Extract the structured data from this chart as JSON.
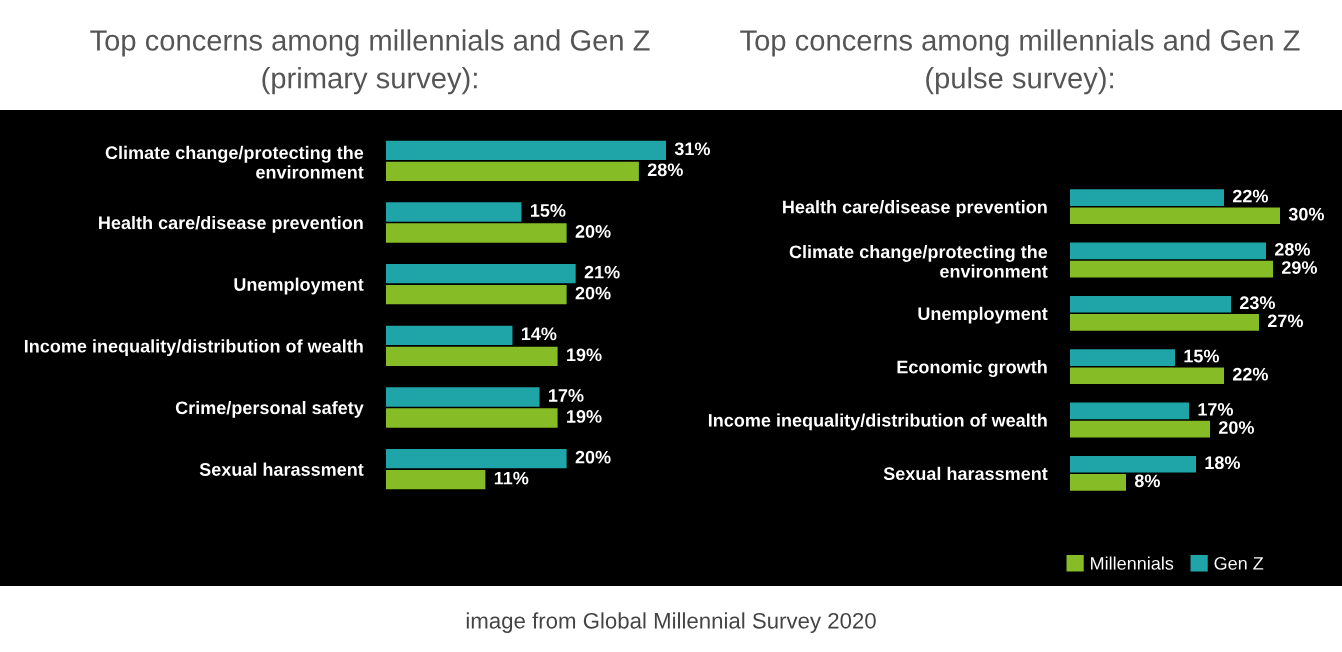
{
  "chart_data": [
    {
      "type": "bar",
      "orientation": "horizontal",
      "title": "Top concerns among millennials and Gen Z\n(primary survey):",
      "categories": [
        "Climate change/protecting the\nenvironment",
        "Health care/disease prevention",
        "Unemployment",
        "Income inequality/distribution of wealth",
        "Crime/personal safety",
        "Sexual harassment"
      ],
      "series": [
        {
          "color": "#86bc25",
          "values": [
            28,
            20,
            20,
            19,
            19,
            11
          ],
          "value_labels": [
            "28%",
            "20%",
            "20%",
            "19%",
            "19%",
            "11%"
          ]
        },
        {
          "color": "#1fa5a8",
          "values": [
            31,
            15,
            21,
            14,
            17,
            20
          ],
          "value_labels": [
            "31%",
            "15%",
            "21%",
            "14%",
            "17%",
            "20%"
          ]
        }
      ],
      "grid": false
    },
    {
      "type": "bar",
      "orientation": "horizontal",
      "title": "Top concerns among millennials and Gen Z\n(pulse survey):",
      "categories": [
        "Health care/disease prevention",
        "Climate change/protecting the\nenvironment",
        "Unemployment",
        "Economic growth",
        "Income inequality/distribution of wealth",
        "Sexual harassment"
      ],
      "series": [
        {
          "name": "Millennials",
          "color": "#86bc25",
          "values": [
            30,
            29,
            27,
            22,
            20,
            8
          ],
          "value_labels": [
            "30%",
            "29%",
            "27%",
            "22%",
            "20%",
            "8%"
          ]
        },
        {
          "name": "Gen Z",
          "color": "#1fa5a8",
          "values": [
            22,
            28,
            23,
            15,
            17,
            18
          ],
          "value_labels": [
            "22%",
            "28%",
            "23%",
            "15%",
            "17%",
            "18%"
          ]
        }
      ],
      "grid": false,
      "legend": "bottom right",
      "annotations": [
        "image from Global Millennial Survey 2020"
      ]
    }
  ]
}
